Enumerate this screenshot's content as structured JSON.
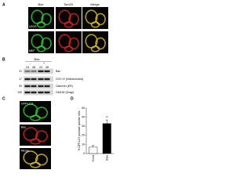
{
  "panel_a": {
    "label": "A",
    "columns": [
      "Bax",
      "Tom20",
      "Merge"
    ],
    "rows": [
      "U2OS",
      "MEF"
    ]
  },
  "panel_b": {
    "label": "B",
    "header": "Bax",
    "conditions": [
      "-",
      "+"
    ],
    "times": [
      "24",
      "48",
      "24",
      "48"
    ],
    "sizes": [
      "21",
      "17",
      "90",
      "130"
    ],
    "bands": [
      "Bax",
      "COX IV (mitochondria)",
      "Calnexin (ER)",
      "GM130 (Golgi)"
    ]
  },
  "panel_c": {
    "label": "C",
    "rows": [
      "GFP-LC3",
      "Bax",
      "Merge"
    ]
  },
  "chart_data": {
    "type": "bar",
    "label": "D",
    "ylabel": "% GFP-LC3 punctate positive cells",
    "categories": [
      "Cont",
      "Bax"
    ],
    "values": [
      7,
      33
    ],
    "errors": [
      2,
      4
    ],
    "annotation": "**",
    "colors": [
      "#ffffff",
      "#000000"
    ],
    "ylim": [
      0,
      50
    ],
    "yticks": [
      0,
      10,
      20,
      30,
      40,
      50
    ]
  }
}
